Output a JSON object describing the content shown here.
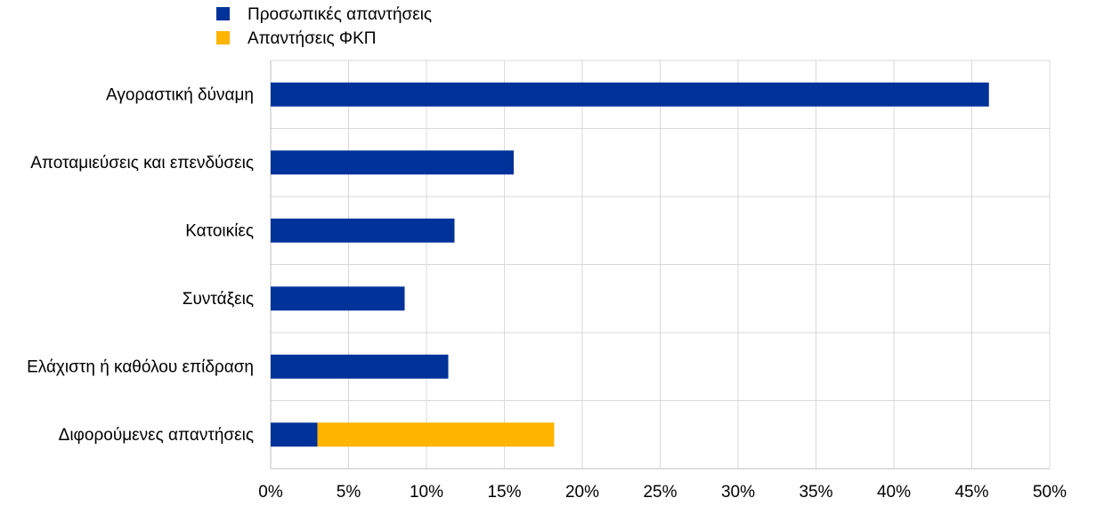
{
  "chart_data": {
    "type": "bar",
    "orientation": "horizontal",
    "stacked": true,
    "title": "",
    "xlabel": "",
    "ylabel": "",
    "categories": [
      "Αγοραστική δύναμη",
      "Αποταμιεύσεις και επενδύσεις",
      "Κατοικίες",
      "Συντάξεις",
      "Ελάχιστη ή καθόλου επίδραση",
      "Διφορούμενες απαντήσεις"
    ],
    "series": [
      {
        "name": "Προσωπικές απαντήσεις",
        "color": "#003299",
        "values": [
          46.1,
          15.6,
          11.8,
          8.6,
          11.4,
          3.0
        ]
      },
      {
        "name": "Απαντήσεις ΦΚΠ",
        "color": "#FFB400",
        "values": [
          0,
          0,
          0,
          0,
          0,
          15.2
        ]
      }
    ],
    "xlim": [
      0,
      50
    ],
    "xticks": [
      0,
      5,
      10,
      15,
      20,
      25,
      30,
      35,
      40,
      45,
      50
    ],
    "tick_format": "%",
    "grid": true,
    "legend_position": "top-left"
  }
}
